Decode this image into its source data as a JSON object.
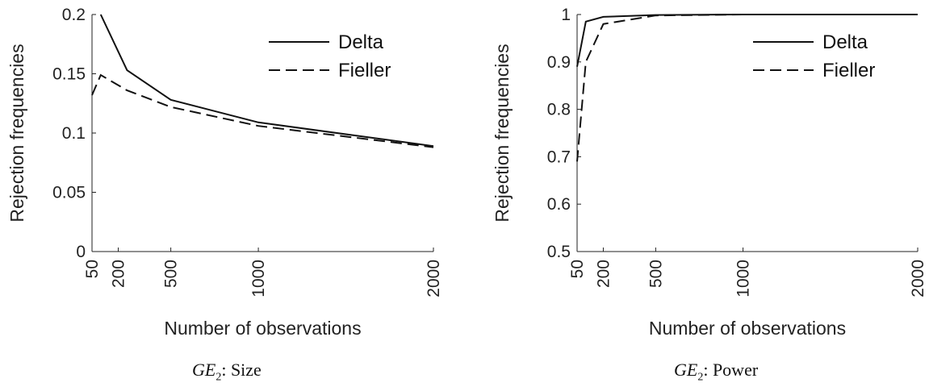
{
  "chart_data": [
    {
      "type": "line",
      "xlabel": "Number of observations",
      "ylabel": "Rejection frequencies",
      "xlim": [
        50,
        2000
      ],
      "ylim": [
        0,
        0.2
      ],
      "xticks": [
        "50",
        "200",
        "500",
        "1000",
        "2000"
      ],
      "yticks": [
        "0",
        "0.05",
        "0.1",
        "0.15",
        "0.2"
      ],
      "legend_position": "top-right",
      "series": [
        {
          "name": "Delta",
          "style": "solid",
          "x": [
            100,
            250,
            500,
            1000,
            2000
          ],
          "y": [
            0.2,
            0.153,
            0.128,
            0.109,
            0.089
          ]
        },
        {
          "name": "Fieller",
          "style": "dashed",
          "x": [
            50,
            100,
            250,
            500,
            1000,
            2000
          ],
          "y": [
            0.132,
            0.149,
            0.136,
            0.122,
            0.106,
            0.088
          ]
        }
      ],
      "caption": {
        "main": "GE",
        "sub": "2",
        "rest": ": Size"
      }
    },
    {
      "type": "line",
      "xlabel": "Number of observations",
      "ylabel": "Rejection frequencies",
      "xlim": [
        50,
        2000
      ],
      "ylim": [
        0.5,
        1
      ],
      "xticks": [
        "50",
        "200",
        "500",
        "1000",
        "2000"
      ],
      "yticks": [
        "0.5",
        "0.6",
        "0.7",
        "0.8",
        "0.9",
        "1"
      ],
      "legend_position": "top-right",
      "series": [
        {
          "name": "Delta",
          "style": "solid",
          "x": [
            50,
            100,
            200,
            500,
            1000,
            2000
          ],
          "y": [
            0.89,
            0.985,
            0.995,
            0.999,
            1.0,
            1.0
          ]
        },
        {
          "name": "Fieller",
          "style": "dashed",
          "x": [
            50,
            100,
            200,
            500,
            1000,
            2000
          ],
          "y": [
            0.69,
            0.9,
            0.98,
            0.998,
            1.0,
            1.0
          ]
        }
      ],
      "caption": {
        "main": "GE",
        "sub": "2",
        "rest": ": Power"
      }
    }
  ]
}
